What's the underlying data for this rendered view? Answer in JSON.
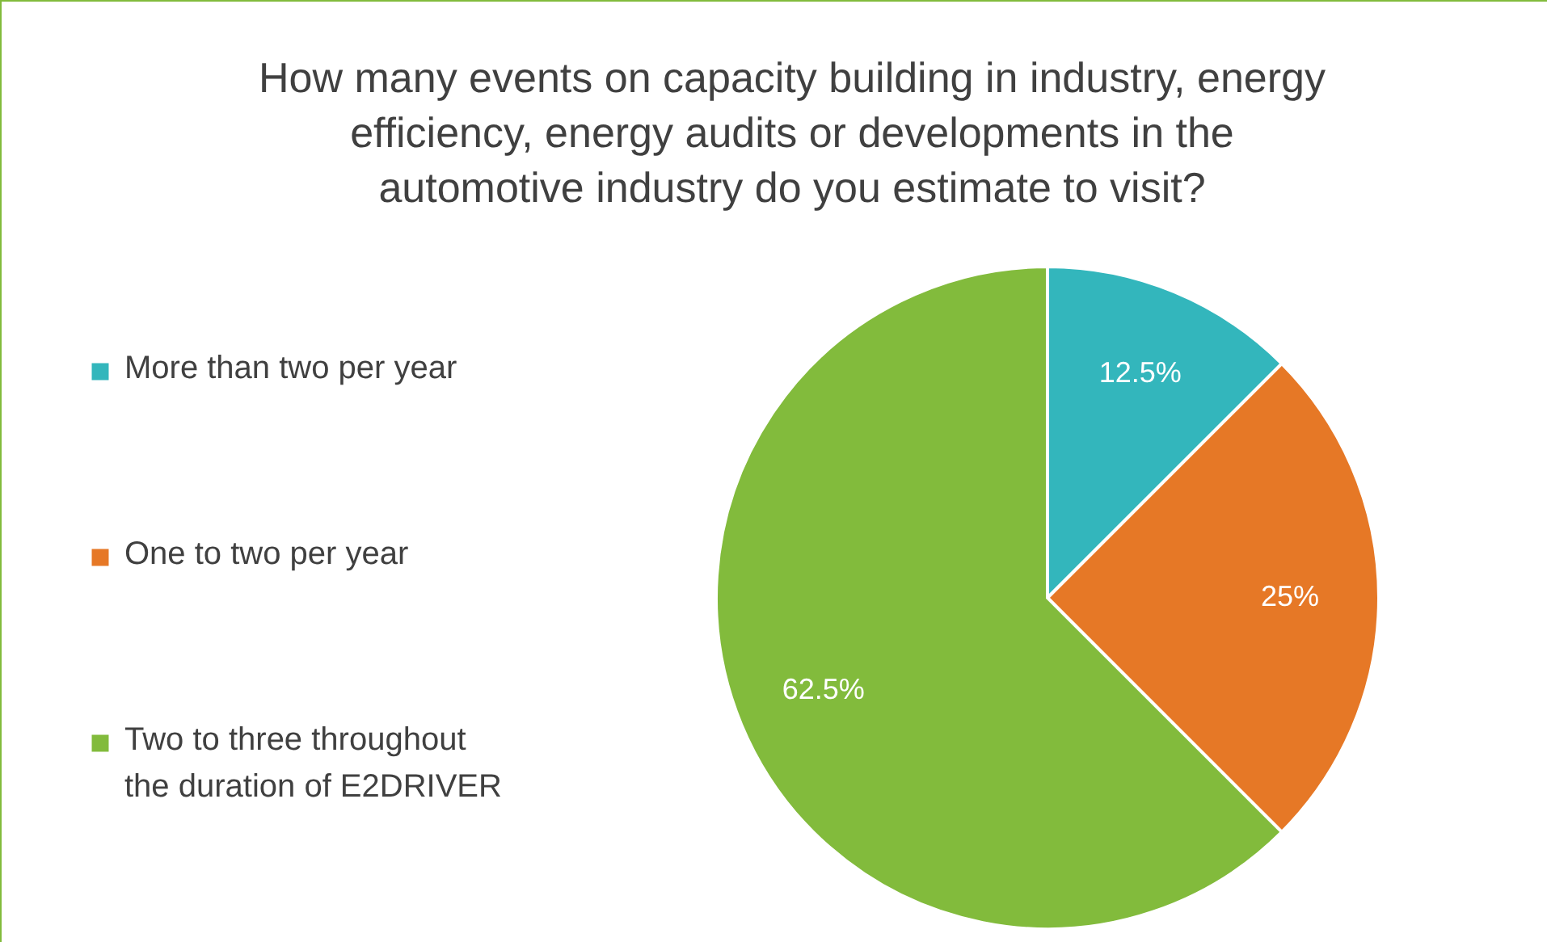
{
  "chart_data": {
    "type": "pie",
    "title": "How many events on capacity building in industry, energy efficiency, energy audits or developments in the automotive industry do you estimate to visit?",
    "categories": [
      "More than two per year",
      "One to two per year",
      "Two to three throughout the duration of E2DRIVER"
    ],
    "values": [
      12.5,
      25,
      62.5
    ],
    "colors": [
      "#33b6bc",
      "#e67826",
      "#82bb3c"
    ],
    "value_labels": [
      "12.5%",
      "25%",
      "62.5%"
    ],
    "legend": "left"
  }
}
